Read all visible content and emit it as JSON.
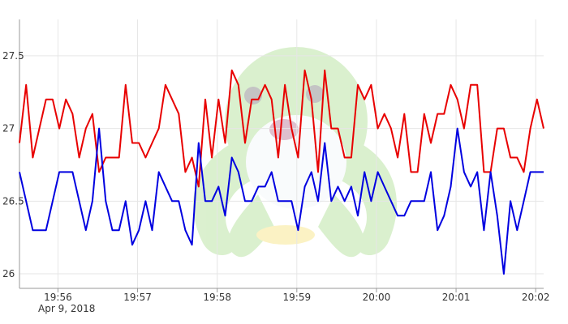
{
  "chart_data": {
    "type": "line",
    "title": "",
    "xlabel": "",
    "ylabel": "",
    "date_label": "Apr 9, 2018",
    "x_ticks": [
      "19:56",
      "19:57",
      "19:58",
      "19:59",
      "20:00",
      "20:01",
      "20:02"
    ],
    "y_ticks": [
      "26",
      "26.5",
      "27",
      "27.5"
    ],
    "x_range": [
      "19:55:31",
      "20:02:06"
    ],
    "ylim": [
      25.9,
      27.75
    ],
    "grid": true,
    "legend": "none",
    "watermark": "octopus-mascot",
    "x": [
      "19:55:31",
      "19:55:36",
      "19:55:41",
      "19:55:46",
      "19:55:51",
      "19:55:56",
      "19:56:01",
      "19:56:06",
      "19:56:11",
      "19:56:16",
      "19:56:21",
      "19:56:26",
      "19:56:31",
      "19:56:36",
      "19:56:41",
      "19:56:46",
      "19:56:51",
      "19:56:56",
      "19:57:01",
      "19:57:06",
      "19:57:11",
      "19:57:16",
      "19:57:21",
      "19:57:26",
      "19:57:31",
      "19:57:36",
      "19:57:41",
      "19:57:46",
      "19:57:51",
      "19:57:56",
      "19:58:01",
      "19:58:06",
      "19:58:11",
      "19:58:16",
      "19:58:21",
      "19:58:26",
      "19:58:31",
      "19:58:36",
      "19:58:41",
      "19:58:46",
      "19:58:51",
      "19:58:56",
      "19:59:01",
      "19:59:06",
      "19:59:11",
      "19:59:16",
      "19:59:21",
      "19:59:26",
      "19:59:31",
      "19:59:36",
      "19:59:41",
      "19:59:46",
      "19:59:51",
      "19:59:56",
      "20:00:01",
      "20:00:06",
      "20:00:11",
      "20:00:16",
      "20:00:21",
      "20:00:26",
      "20:00:31",
      "20:00:36",
      "20:00:41",
      "20:00:46",
      "20:00:51",
      "20:00:56",
      "20:01:01",
      "20:01:06",
      "20:01:11",
      "20:01:16",
      "20:01:21",
      "20:01:26",
      "20:01:31",
      "20:01:36",
      "20:01:41",
      "20:01:46",
      "20:01:51",
      "20:01:56",
      "20:02:01",
      "20:02:06"
    ],
    "series": [
      {
        "color": "#e80000",
        "values": [
          26.9,
          27.3,
          26.8,
          27.0,
          27.2,
          27.2,
          27.0,
          27.2,
          27.1,
          26.8,
          27.0,
          27.1,
          26.7,
          26.8,
          26.8,
          26.8,
          27.3,
          26.9,
          26.9,
          26.8,
          26.9,
          27.0,
          27.3,
          27.2,
          27.1,
          26.7,
          26.8,
          26.6,
          27.2,
          26.8,
          27.2,
          26.9,
          27.4,
          27.3,
          26.9,
          27.2,
          27.2,
          27.3,
          27.2,
          26.8,
          27.3,
          27.0,
          26.8,
          27.4,
          27.2,
          26.7,
          27.4,
          27.0,
          27.0,
          26.8,
          26.8,
          27.3,
          27.2,
          27.3,
          27.0,
          27.1,
          27.0,
          26.8,
          27.1,
          26.7,
          26.7,
          27.1,
          26.9,
          27.1,
          27.1,
          27.3,
          27.2,
          27.0,
          27.3,
          27.3,
          26.7,
          26.7,
          27.0,
          27.0,
          26.8,
          26.8,
          26.7,
          27.0,
          27.2,
          27.0
        ]
      },
      {
        "color": "#0000e0",
        "values": [
          26.7,
          26.5,
          26.3,
          26.3,
          26.3,
          26.5,
          26.7,
          26.7,
          26.7,
          26.5,
          26.3,
          26.5,
          27.0,
          26.5,
          26.3,
          26.3,
          26.5,
          26.2,
          26.3,
          26.5,
          26.3,
          26.7,
          26.6,
          26.5,
          26.5,
          26.3,
          26.2,
          26.9,
          26.5,
          26.5,
          26.6,
          26.4,
          26.8,
          26.7,
          26.5,
          26.5,
          26.6,
          26.6,
          26.7,
          26.5,
          26.5,
          26.5,
          26.3,
          26.6,
          26.7,
          26.5,
          26.9,
          26.5,
          26.6,
          26.5,
          26.6,
          26.4,
          26.7,
          26.5,
          26.7,
          26.6,
          26.5,
          26.4,
          26.4,
          26.5,
          26.5,
          26.5,
          26.7,
          26.3,
          26.4,
          26.6,
          27.0,
          26.7,
          26.6,
          26.7,
          26.3,
          26.7,
          26.4,
          26.0,
          26.5,
          26.3,
          26.5,
          26.7,
          26.7,
          26.7
        ]
      }
    ]
  }
}
